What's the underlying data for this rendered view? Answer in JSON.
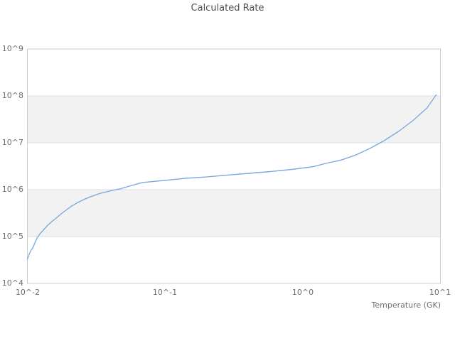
{
  "title": "Calculated Rate",
  "colors": {
    "background": "#ffffff",
    "line": "#7aabde",
    "band": "#f2f2f2",
    "grid": "#dddddd",
    "frame": "#cccccc",
    "title_text": "#4f4f4f",
    "label_text": "#6e6e6e"
  },
  "axes": {
    "x": {
      "label": "Temperature (GK)",
      "ticks": [
        "10^-2",
        "10^-1",
        "10^0",
        "10^1"
      ],
      "log_min": -2,
      "log_max": 1
    },
    "y": {
      "ticks": [
        "10^9",
        "10^8",
        "10^7",
        "10^6",
        "10^5",
        "10^4"
      ],
      "log_min": 4,
      "log_max": 9,
      "shaded_decades": [
        [
          7,
          8
        ],
        [
          5,
          6
        ]
      ]
    }
  },
  "chart_data": {
    "type": "line",
    "title": "Calculated Rate",
    "xlabel": "Temperature (GK)",
    "ylabel": "",
    "xscale": "log",
    "yscale": "log",
    "xlim": [
      0.01,
      10
    ],
    "ylim": [
      10000,
      1000000000
    ],
    "grid": "horizontal-decades",
    "legend": "none",
    "series": [
      {
        "name": "Calculated Rate",
        "x": [
          0.01,
          0.0105,
          0.011,
          0.0114,
          0.0118,
          0.0123,
          0.0131,
          0.0139,
          0.015,
          0.0163,
          0.0176,
          0.0189,
          0.0208,
          0.0234,
          0.0264,
          0.0297,
          0.0335,
          0.0377,
          0.0424,
          0.0478,
          0.0538,
          0.0684,
          0.0977,
          0.14,
          0.2,
          0.285,
          0.407,
          0.582,
          0.831,
          1.19,
          1.51,
          1.91,
          2.43,
          3.08,
          3.9,
          4.96,
          6.29,
          7.98,
          9.3
        ],
        "y": [
          33000,
          48000,
          59000,
          76000,
          95000,
          113000,
          139000,
          169000,
          208000,
          252000,
          305000,
          357000,
          440000,
          540000,
          640000,
          730000,
          830000,
          900000,
          980000,
          1050000,
          1170000,
          1420000,
          1570000,
          1750000,
          1870000,
          2050000,
          2230000,
          2430000,
          2700000,
          3100000,
          3700000,
          4300000,
          5500000,
          7600000,
          11100000,
          17500000,
          29500000,
          55000000,
          105000000
        ]
      }
    ]
  }
}
